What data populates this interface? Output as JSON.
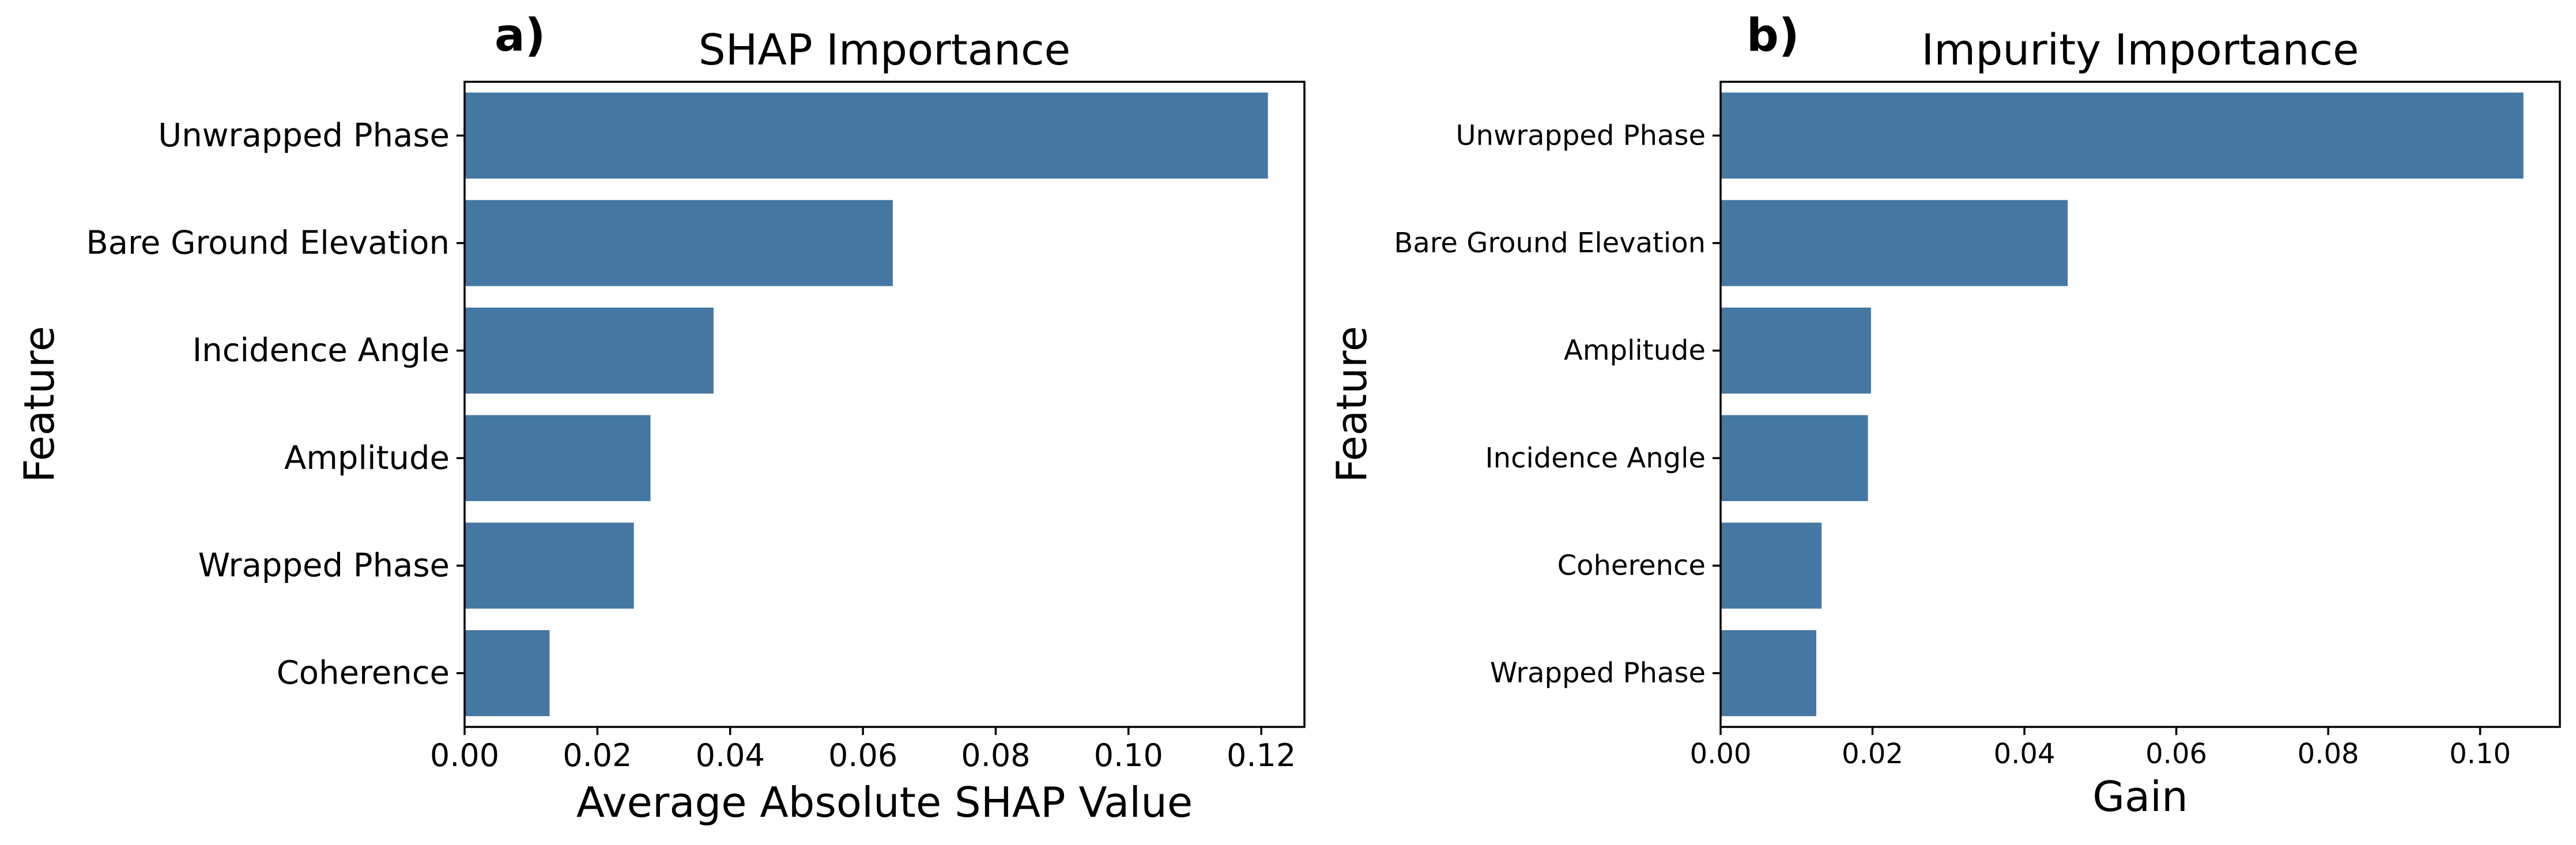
{
  "chart_data": [
    {
      "type": "bar",
      "orientation": "horizontal",
      "panel_label": "a)",
      "title": "SHAP Importance",
      "xlabel": "Average Absolute SHAP Value",
      "ylabel": "Feature",
      "categories": [
        "Unwrapped Phase",
        "Bare Ground Elevation",
        "Incidence Angle",
        "Amplitude",
        "Wrapped Phase",
        "Coherence"
      ],
      "values": [
        0.121,
        0.0645,
        0.0375,
        0.028,
        0.0255,
        0.0128
      ],
      "xlim": [
        0,
        0.1265
      ],
      "xticks": [
        "0.00",
        "0.02",
        "0.04",
        "0.06",
        "0.08",
        "0.10",
        "0.12"
      ],
      "bar_color": "#4477a1",
      "grid": false,
      "legend": "none"
    },
    {
      "type": "bar",
      "orientation": "horizontal",
      "panel_label": "b)",
      "title": "Impurity Importance",
      "xlabel": "Gain",
      "ylabel": "Feature",
      "categories": [
        "Unwrapped Phase",
        "Bare Ground Elevation",
        "Amplitude",
        "Incidence Angle",
        "Coherence",
        "Wrapped Phase"
      ],
      "values": [
        0.1057,
        0.0457,
        0.0198,
        0.0194,
        0.0133,
        0.0126
      ],
      "xlim": [
        0,
        0.1105
      ],
      "xticks": [
        "0.00",
        "0.02",
        "0.04",
        "0.06",
        "0.08",
        "0.10"
      ],
      "bar_color": "#4477a1",
      "grid": false,
      "legend": "none"
    }
  ]
}
